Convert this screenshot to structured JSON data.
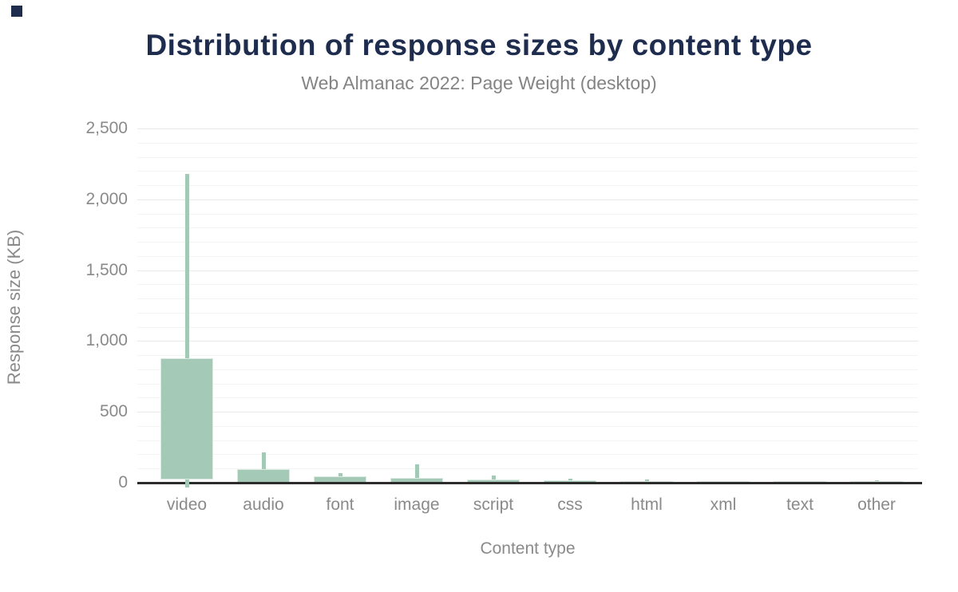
{
  "page": {
    "background_color": "#ffffff",
    "brand_square_color": "#1e2c4e"
  },
  "header": {
    "title": "Distribution of response sizes by content type",
    "subtitle": "Web Almanac 2022: Page Weight (desktop)"
  },
  "colors": {
    "title_text": "#1e2c4e",
    "muted_text": "#8a8a8a",
    "bar_fill": "#a4c9b6",
    "bar_border": "#dcebe2",
    "grid_major": "#e8e8e8",
    "grid_minor": "#f4f4f4",
    "axis_line": "#2c2c2c"
  },
  "chart_data": {
    "type": "boxplot",
    "title": "Distribution of response sizes by content type",
    "subtitle": "Web Almanac 2022: Page Weight (desktop)",
    "xlabel": "Content type",
    "ylabel": "Response size (KB)",
    "ylim": [
      0,
      2500
    ],
    "ytick_interval": 500,
    "ytick_values": [
      0,
      500,
      1000,
      1500,
      2000,
      2500
    ],
    "ytick_labels": [
      "0",
      "500",
      "1,000",
      "1,500",
      "2,000",
      "2,500"
    ],
    "minor_grid_interval_kb": 100,
    "grid": true,
    "legend": false,
    "categories": [
      "video",
      "audio",
      "font",
      "image",
      "script",
      "css",
      "html",
      "xml",
      "text",
      "other"
    ],
    "values_estimated_kb": [
      {
        "category": "video",
        "p10": 0,
        "p25": 25,
        "p75": 880,
        "p90": 2180
      },
      {
        "category": "audio",
        "p10": 0,
        "p25": 0,
        "p75": 95,
        "p90": 215
      },
      {
        "category": "font",
        "p10": 0,
        "p25": 0,
        "p75": 45,
        "p90": 66
      },
      {
        "category": "image",
        "p10": 0,
        "p25": 0,
        "p75": 34,
        "p90": 128
      },
      {
        "category": "script",
        "p10": 0,
        "p25": 0,
        "p75": 23,
        "p90": 50
      },
      {
        "category": "css",
        "p10": 0,
        "p25": 0,
        "p75": 15,
        "p90": 28
      },
      {
        "category": "html",
        "p10": 0,
        "p25": 0,
        "p75": 10,
        "p90": 21
      },
      {
        "category": "xml",
        "p10": 0,
        "p25": 0,
        "p75": 9,
        "p90": 9
      },
      {
        "category": "text",
        "p10": 0,
        "p25": 0,
        "p75": 9,
        "p90": 9
      },
      {
        "category": "other",
        "p10": 0,
        "p25": 0,
        "p75": 9,
        "p90": 15
      }
    ]
  }
}
